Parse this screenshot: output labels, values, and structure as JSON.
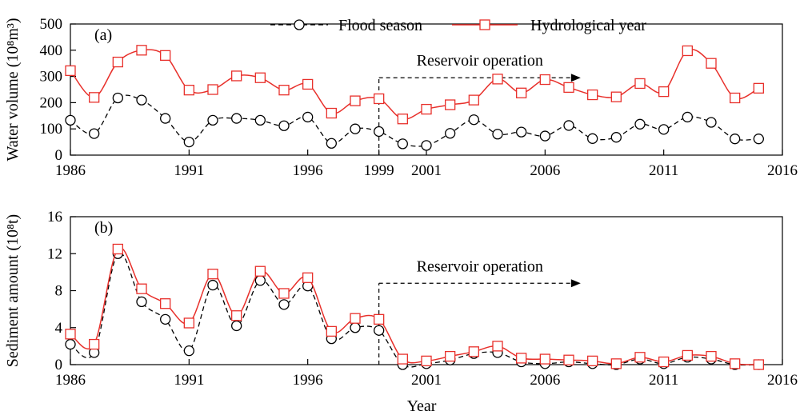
{
  "colors": {
    "flood": "#000000",
    "hydro": "#e8302b",
    "axis": "#000000"
  },
  "legend": {
    "flood_label": "Flood season",
    "hydro_label": "Hydrological year",
    "placement": "top"
  },
  "x_axis_title": "Year",
  "chart_data": [
    {
      "type": "line",
      "panel_label": "(a)",
      "ylabel": "Water volume (10⁸m³)",
      "xlim": [
        1986,
        2016
      ],
      "ylim": [
        0,
        500
      ],
      "x_ticks": [
        1986,
        1991,
        1996,
        1999,
        2001,
        2006,
        2011,
        2016
      ],
      "y_ticks": [
        0,
        100,
        200,
        300,
        400,
        500
      ],
      "annotation": {
        "text": "Reservoir operation",
        "start_year": 1999,
        "end_year": 2007.5,
        "level": 295
      },
      "x": [
        1986,
        1987,
        1988,
        1989,
        1990,
        1991,
        1992,
        1993,
        1994,
        1995,
        1996,
        1997,
        1998,
        1999,
        2000,
        2001,
        2002,
        2003,
        2004,
        2005,
        2006,
        2007,
        2008,
        2009,
        2010,
        2011,
        2012,
        2013,
        2014,
        2015
      ],
      "series": [
        {
          "name": "Flood season",
          "values": [
            133,
            82,
            218,
            210,
            140,
            50,
            133,
            140,
            133,
            112,
            145,
            45,
            100,
            90,
            43,
            37,
            83,
            135,
            80,
            88,
            73,
            113,
            63,
            68,
            118,
            98,
            145,
            125,
            62,
            62
          ]
        },
        {
          "name": "Hydrological year",
          "values": [
            322,
            220,
            355,
            400,
            380,
            248,
            250,
            302,
            295,
            248,
            270,
            160,
            207,
            215,
            138,
            175,
            192,
            210,
            290,
            237,
            288,
            258,
            230,
            222,
            273,
            242,
            398,
            350,
            218,
            255
          ]
        }
      ]
    },
    {
      "type": "line",
      "panel_label": "(b)",
      "ylabel": "Sediment amount (10⁸t)",
      "xlim": [
        1986,
        2016
      ],
      "ylim": [
        0,
        16
      ],
      "x_ticks": [
        1986,
        1991,
        1996,
        2001,
        2006,
        2011,
        2016
      ],
      "y_ticks": [
        0,
        4,
        8,
        12,
        16
      ],
      "annotation": {
        "text": "Reservoir operation",
        "start_year": 1999,
        "end_year": 2007.5,
        "level": 8.8
      },
      "x": [
        1986,
        1987,
        1988,
        1989,
        1990,
        1991,
        1992,
        1993,
        1994,
        1995,
        1996,
        1997,
        1998,
        1999,
        2000,
        2001,
        2002,
        2003,
        2004,
        2005,
        2006,
        2007,
        2008,
        2009,
        2010,
        2011,
        2012,
        2013,
        2014,
        2015
      ],
      "series": [
        {
          "name": "Flood season",
          "values": [
            2.2,
            1.3,
            12.0,
            6.8,
            4.9,
            1.5,
            8.6,
            4.2,
            9.1,
            6.5,
            8.5,
            2.8,
            4.0,
            3.7,
            0.0,
            0.1,
            0.5,
            1.2,
            1.3,
            0.3,
            0.1,
            0.3,
            0.1,
            0.0,
            0.6,
            0.1,
            0.8,
            0.6,
            0.0,
            0.0
          ]
        },
        {
          "name": "Hydrological year",
          "values": [
            3.3,
            2.2,
            12.5,
            8.2,
            6.6,
            4.5,
            9.8,
            5.3,
            10.1,
            7.7,
            9.4,
            3.6,
            5.0,
            4.9,
            0.6,
            0.4,
            0.9,
            1.4,
            2.0,
            0.7,
            0.6,
            0.5,
            0.4,
            0.1,
            0.8,
            0.3,
            1.0,
            0.9,
            0.1,
            0.0
          ]
        }
      ]
    }
  ]
}
